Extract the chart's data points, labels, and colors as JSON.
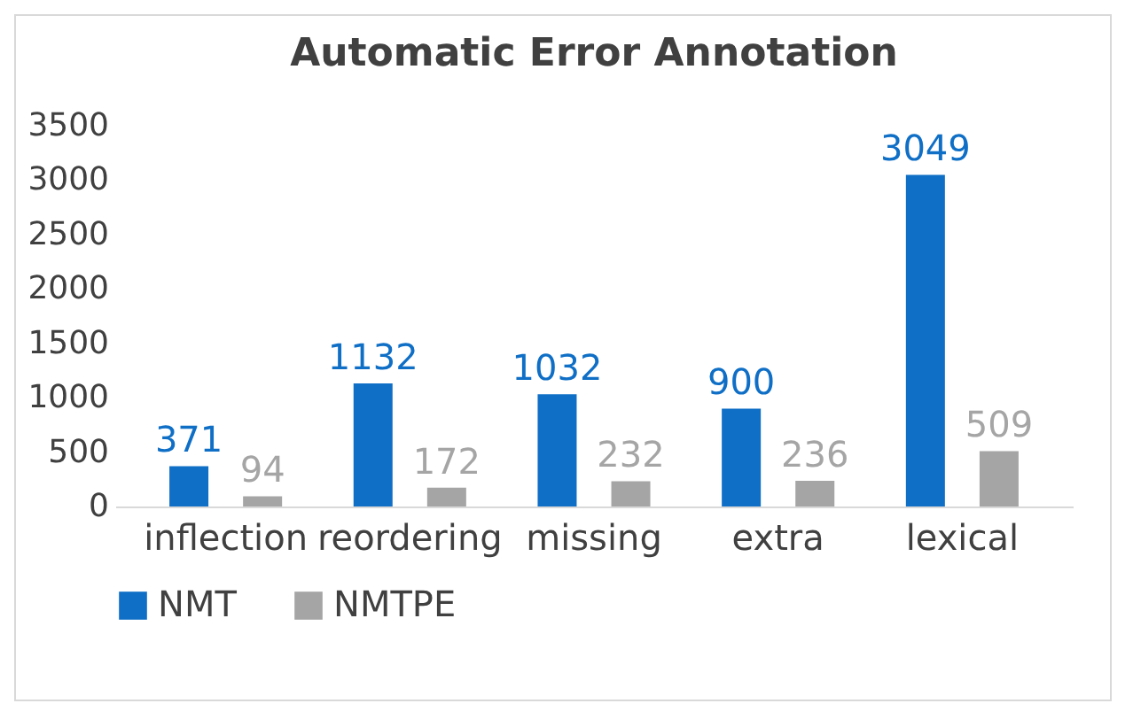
{
  "chart_data": {
    "type": "bar",
    "title": "Automatic Error Annotation",
    "categories": [
      "inflection",
      "reordering",
      "missing",
      "extra",
      "lexical"
    ],
    "series": [
      {
        "name": "NMT",
        "color": "#0f6fc6",
        "values": [
          371,
          1132,
          1032,
          900,
          3049
        ]
      },
      {
        "name": "NMTPE",
        "color": "#a5a5a5",
        "values": [
          94,
          172,
          232,
          236,
          509
        ]
      }
    ],
    "ylim": [
      0,
      3500
    ],
    "yticks": [
      0,
      500,
      1000,
      1500,
      2000,
      2500,
      3000,
      3500
    ],
    "grid": false,
    "legend": "bottom",
    "data_labels": true
  }
}
